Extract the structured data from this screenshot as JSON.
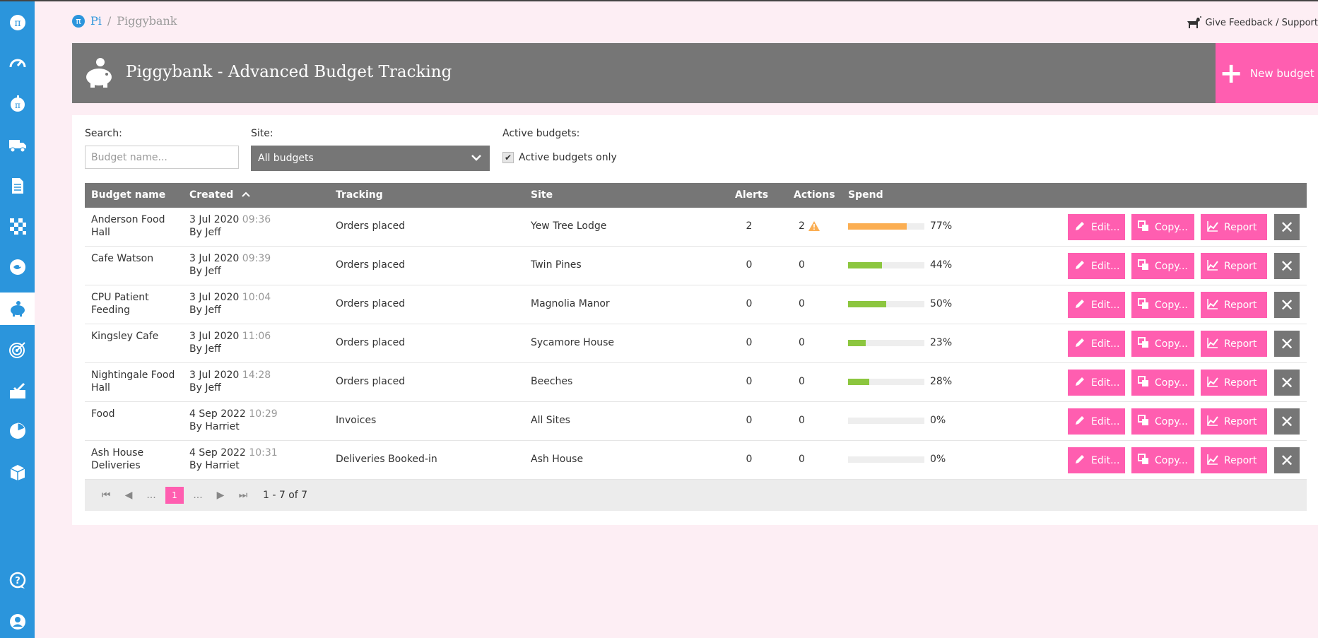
{
  "breadcrumb": {
    "root": "Pi",
    "separator": "/",
    "current": "Piggybank",
    "logo_glyph": "π"
  },
  "feedback": {
    "label": "Give Feedback / Support"
  },
  "header": {
    "title": "Piggybank - Advanced Budget Tracking",
    "new_button": "New budget"
  },
  "filters": {
    "search_label": "Search:",
    "search_placeholder": "Budget name...",
    "site_label": "Site:",
    "site_value": "All budgets",
    "active_label": "Active budgets:",
    "active_checkbox_label": "Active budgets only",
    "active_checked": true
  },
  "table": {
    "headers": {
      "name": "Budget name",
      "created": "Created",
      "tracking": "Tracking",
      "site": "Site",
      "alerts": "Alerts",
      "actions": "Actions",
      "spend": "Spend"
    },
    "rows": [
      {
        "name": "Anderson Food Hall",
        "date": "3 Jul 2020",
        "time": "09:36",
        "by": "By Jeff",
        "tracking": "Orders placed",
        "site": "Yew Tree Lodge",
        "alerts": "2",
        "actions": "2",
        "warn": true,
        "spend_label": "77%",
        "spend": 0.77,
        "color": "#fbae52"
      },
      {
        "name": "Cafe Watson",
        "date": "3 Jul 2020",
        "time": "09:39",
        "by": "By Jeff",
        "tracking": "Orders placed",
        "site": "Twin Pines",
        "alerts": "0",
        "actions": "0",
        "warn": false,
        "spend_label": "44%",
        "spend": 0.44,
        "color": "#8cc63f"
      },
      {
        "name": "CPU Patient Feeding",
        "date": "3 Jul 2020",
        "time": "10:04",
        "by": "By Jeff",
        "tracking": "Orders placed",
        "site": "Magnolia Manor",
        "alerts": "0",
        "actions": "0",
        "warn": false,
        "spend_label": "50%",
        "spend": 0.5,
        "color": "#8cc63f"
      },
      {
        "name": "Kingsley Cafe",
        "date": "3 Jul 2020",
        "time": "11:06",
        "by": "By Jeff",
        "tracking": "Orders placed",
        "site": "Sycamore House",
        "alerts": "0",
        "actions": "0",
        "warn": false,
        "spend_label": "23%",
        "spend": 0.23,
        "color": "#8cc63f"
      },
      {
        "name": "Nightingale Food Hall",
        "date": "3 Jul 2020",
        "time": "14:28",
        "by": "By Jeff",
        "tracking": "Orders placed",
        "site": "Beeches",
        "alerts": "0",
        "actions": "0",
        "warn": false,
        "spend_label": "28%",
        "spend": 0.28,
        "color": "#8cc63f"
      },
      {
        "name": "Food",
        "date": "4 Sep 2022",
        "time": "10:29",
        "by": "By Harriet",
        "tracking": "Invoices",
        "site": "All Sites",
        "alerts": "0",
        "actions": "0",
        "warn": false,
        "spend_label": "0%",
        "spend": 0,
        "color": "#8cc63f"
      },
      {
        "name": "Ash House Deliveries",
        "date": "4 Sep 2022",
        "time": "10:31",
        "by": "By Harriet",
        "tracking": "Deliveries Booked-in",
        "site": "Ash House",
        "alerts": "0",
        "actions": "0",
        "warn": false,
        "spend_label": "0%",
        "spend": 0,
        "color": "#8cc63f"
      }
    ],
    "buttons": {
      "edit": "Edit...",
      "copy": "Copy...",
      "report": "Report"
    }
  },
  "pager": {
    "ellipsis": "...",
    "current": "1",
    "info": "1 - 7 of 7"
  },
  "sidebar": {
    "items": [
      {
        "icon": "pi-logo-icon",
        "active": false
      },
      {
        "icon": "dashboard-gauge-icon",
        "active": false
      },
      {
        "icon": "pi-apple-icon",
        "active": false
      },
      {
        "icon": "delivery-truck-icon",
        "active": false
      },
      {
        "icon": "document-icon",
        "active": false
      },
      {
        "icon": "checkered-flag-icon",
        "active": false
      },
      {
        "icon": "fish-icon",
        "active": false
      },
      {
        "icon": "piggybank-icon",
        "active": true
      },
      {
        "icon": "target-icon",
        "active": false
      },
      {
        "icon": "tray-check-icon",
        "active": false
      },
      {
        "icon": "pie-chart-icon",
        "active": false
      },
      {
        "icon": "box-icon",
        "active": false
      },
      {
        "icon": "help-chat-icon",
        "active": false
      },
      {
        "icon": "user-icon",
        "active": false
      }
    ]
  },
  "colors": {
    "accent": "#ff5eb0",
    "brand_blue": "#2b95dc",
    "header_grey": "#767676",
    "warning": "#fbae52",
    "ok": "#8cc63f"
  }
}
